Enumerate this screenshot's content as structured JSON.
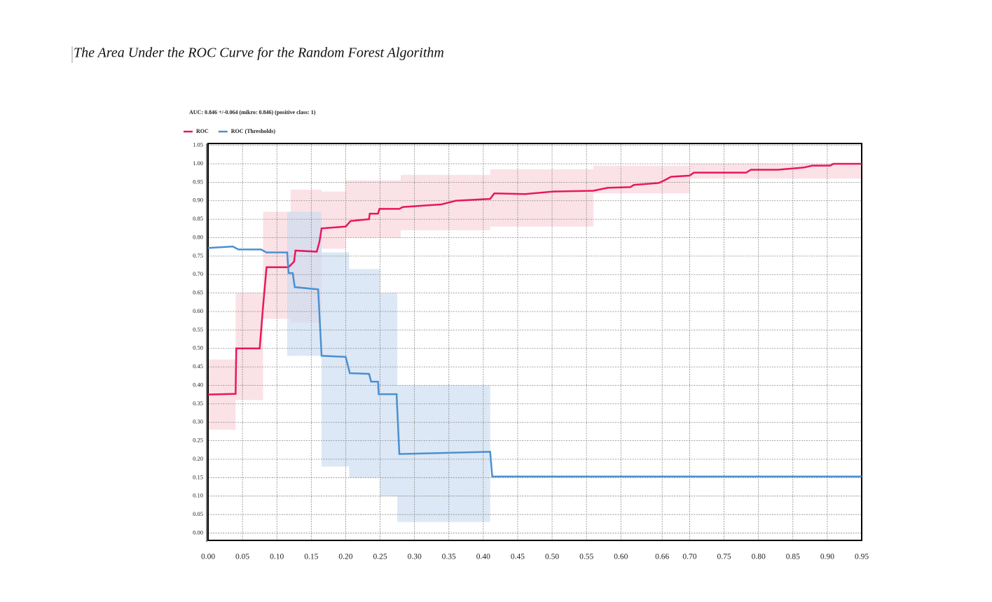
{
  "caption": "The Area Under the ROC Curve for the Random Forest Algorithm",
  "chart_data": {
    "type": "line",
    "title": "AUC: 0.846 +/-0.064 (mikro: 0.846) (positive class: 1)",
    "xlim": [
      0,
      0.95
    ],
    "ylim": [
      -0.02,
      1.055
    ],
    "grid": true,
    "legend": "top-left",
    "xticks": [
      {
        "value": 0,
        "label": "0.00"
      },
      {
        "value": 0.05,
        "label": "0.05"
      },
      {
        "value": 0.1,
        "label": "0.10"
      },
      {
        "value": 0.15,
        "label": "0.15"
      },
      {
        "value": 0.2,
        "label": "0.20"
      },
      {
        "value": 0.25,
        "label": "0.25"
      },
      {
        "value": 0.3,
        "label": "0.30"
      },
      {
        "value": 0.35,
        "label": "0.35"
      },
      {
        "value": 0.4,
        "label": "0.40"
      },
      {
        "value": 0.45,
        "label": "0.45"
      },
      {
        "value": 0.5,
        "label": "0.50"
      },
      {
        "value": 0.55,
        "label": "0.55"
      },
      {
        "value": 0.6,
        "label": "0.60"
      },
      {
        "value": 0.66,
        "label": "0.66"
      },
      {
        "value": 0.7,
        "label": "0.70"
      },
      {
        "value": 0.75,
        "label": "0.75"
      },
      {
        "value": 0.8,
        "label": "0.80"
      },
      {
        "value": 0.85,
        "label": "0.85"
      },
      {
        "value": 0.9,
        "label": "0.90"
      },
      {
        "value": 0.95,
        "label": "0.95"
      }
    ],
    "yticks": [
      {
        "value": 0,
        "label": "0.00"
      },
      {
        "value": 0.05,
        "label": "0.05"
      },
      {
        "value": 0.1,
        "label": "0.10"
      },
      {
        "value": 0.15,
        "label": "0.15"
      },
      {
        "value": 0.2,
        "label": "0.20"
      },
      {
        "value": 0.25,
        "label": "0.25"
      },
      {
        "value": 0.3,
        "label": "0.30"
      },
      {
        "value": 0.35,
        "label": "0.35"
      },
      {
        "value": 0.4,
        "label": "0.40"
      },
      {
        "value": 0.45,
        "label": "0.45"
      },
      {
        "value": 0.5,
        "label": "0.50"
      },
      {
        "value": 0.55,
        "label": "0.55"
      },
      {
        "value": 0.6,
        "label": "0.60"
      },
      {
        "value": 0.65,
        "label": "0.65"
      },
      {
        "value": 0.7,
        "label": "0.70"
      },
      {
        "value": 0.75,
        "label": "0.75"
      },
      {
        "value": 0.8,
        "label": "0.80"
      },
      {
        "value": 0.85,
        "label": "0.85"
      },
      {
        "value": 0.9,
        "label": "0.90"
      },
      {
        "value": 0.95,
        "label": "0.95"
      },
      {
        "value": 1,
        "label": "1.00"
      },
      {
        "value": 1.05,
        "label": "1.05"
      }
    ],
    "series": [
      {
        "name": "ROC",
        "color": "#e8175d",
        "band_color": "#f9d3da",
        "x": [
          0,
          0.04,
          0.041,
          0.075,
          0.08,
          0.085,
          0.117,
          0.125,
          0.127,
          0.158,
          0.162,
          0.165,
          0.2,
          0.207,
          0.234,
          0.235,
          0.247,
          0.249,
          0.278,
          0.283,
          0.339,
          0.36,
          0.41,
          0.416,
          0.461,
          0.502,
          0.56,
          0.581,
          0.614,
          0.619,
          0.655,
          0.663,
          0.673,
          0.7,
          0.706,
          0.782,
          0.789,
          0.828,
          0.866,
          0.878,
          0.904,
          0.909,
          0.95
        ],
        "values": [
          0.375,
          0.377,
          0.5,
          0.5,
          0.615,
          0.72,
          0.72,
          0.735,
          0.765,
          0.762,
          0.79,
          0.825,
          0.83,
          0.845,
          0.85,
          0.865,
          0.865,
          0.878,
          0.878,
          0.883,
          0.89,
          0.9,
          0.905,
          0.92,
          0.918,
          0.925,
          0.927,
          0.935,
          0.937,
          0.943,
          0.948,
          0.955,
          0.965,
          0.968,
          0.976,
          0.976,
          0.984,
          0.984,
          0.99,
          0.995,
          0.995,
          1,
          1
        ],
        "band": {
          "edges": [
            0,
            0.04,
            0.08,
            0.12,
            0.165,
            0.2,
            0.28,
            0.41,
            0.56,
            0.7,
            0.95
          ],
          "upper": [
            0.47,
            0.65,
            0.87,
            0.93,
            0.925,
            0.955,
            0.97,
            0.985,
            0.995,
            1
          ],
          "lower": [
            0.28,
            0.36,
            0.58,
            0.57,
            0.77,
            0.8,
            0.82,
            0.83,
            0.92,
            0.96
          ]
        }
      },
      {
        "name": "ROC (Thresholds)",
        "color": "#4a90d0",
        "band_color": "#c9dcef",
        "x": [
          0,
          0.036,
          0.044,
          0.077,
          0.085,
          0.115,
          0.117,
          0.123,
          0.126,
          0.16,
          0.165,
          0.2,
          0.206,
          0.234,
          0.237,
          0.247,
          0.248,
          0.274,
          0.278,
          0.41,
          0.413,
          0.95
        ],
        "values": [
          0.772,
          0.776,
          0.768,
          0.768,
          0.76,
          0.76,
          0.704,
          0.704,
          0.666,
          0.66,
          0.48,
          0.477,
          0.433,
          0.431,
          0.41,
          0.41,
          0.376,
          0.376,
          0.214,
          0.22,
          0.153,
          0.153
        ],
        "band": {
          "edges": [
            0.115,
            0.165,
            0.205,
            0.25,
            0.275,
            0.41
          ],
          "upper": [
            0.87,
            0.76,
            0.715,
            0.65,
            0.4
          ],
          "lower": [
            0.48,
            0.18,
            0.15,
            0.1,
            0.03
          ]
        }
      }
    ]
  }
}
